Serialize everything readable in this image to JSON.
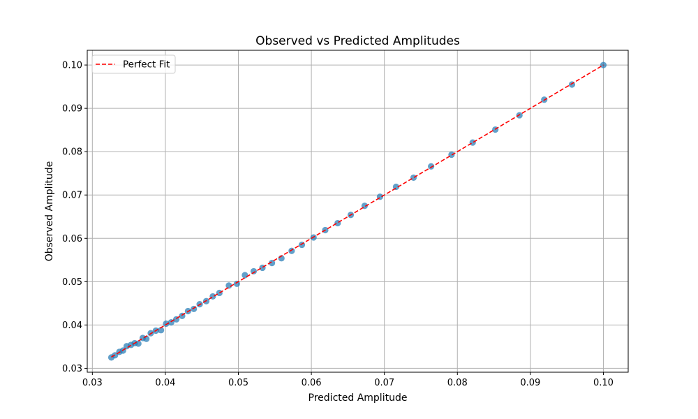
{
  "chart_data": {
    "type": "scatter",
    "title": "Observed vs Predicted Amplitudes",
    "xlabel": "Predicted Amplitude",
    "ylabel": "Observed Amplitude",
    "xlim": [
      0.0293,
      0.1034
    ],
    "ylim": [
      0.0291,
      0.1034
    ],
    "x_ticks": [
      "0.03",
      "0.04",
      "0.05",
      "0.06",
      "0.07",
      "0.08",
      "0.09",
      "0.10"
    ],
    "y_ticks": [
      "0.03",
      "0.04",
      "0.05",
      "0.06",
      "0.07",
      "0.08",
      "0.09",
      "0.10"
    ],
    "grid": true,
    "legend": {
      "placement": "top-left",
      "entries": [
        "Perfect Fit"
      ]
    },
    "colors": {
      "points": "#1f77b4",
      "fit_line": "#ff0000"
    },
    "series": [
      {
        "type": "scatter",
        "x": [
          0.0326,
          0.0331,
          0.0337,
          0.0342,
          0.0347,
          0.0353,
          0.0358,
          0.0363,
          0.0369,
          0.0374,
          0.038,
          0.0387,
          0.0394,
          0.0401,
          0.0408,
          0.0415,
          0.0423,
          0.0431,
          0.0439,
          0.0447,
          0.0456,
          0.0465,
          0.0474,
          0.0487,
          0.0498,
          0.0509,
          0.0521,
          0.0533,
          0.0546,
          0.0559,
          0.0573,
          0.0587,
          0.0603,
          0.0619,
          0.0636,
          0.0654,
          0.0673,
          0.0694,
          0.0716,
          0.074,
          0.0764,
          0.0792,
          0.0821,
          0.0852,
          0.0885,
          0.0919,
          0.0957,
          0.1
        ],
        "y": [
          0.0325,
          0.033,
          0.0338,
          0.0341,
          0.0351,
          0.0354,
          0.0358,
          0.0357,
          0.037,
          0.0368,
          0.0381,
          0.0387,
          0.0388,
          0.0403,
          0.0406,
          0.0413,
          0.0421,
          0.0432,
          0.0437,
          0.0448,
          0.0455,
          0.0466,
          0.0474,
          0.0491,
          0.0495,
          0.0515,
          0.0524,
          0.0532,
          0.0543,
          0.0554,
          0.0571,
          0.0585,
          0.0602,
          0.0619,
          0.0635,
          0.0654,
          0.0675,
          0.0696,
          0.0719,
          0.074,
          0.0766,
          0.0793,
          0.0821,
          0.0851,
          0.0884,
          0.092,
          0.0955,
          0.1
        ]
      },
      {
        "name": "Perfect Fit",
        "type": "line",
        "style": "dashed",
        "x": [
          0.0326,
          0.1
        ],
        "y": [
          0.0326,
          0.1
        ]
      }
    ]
  }
}
